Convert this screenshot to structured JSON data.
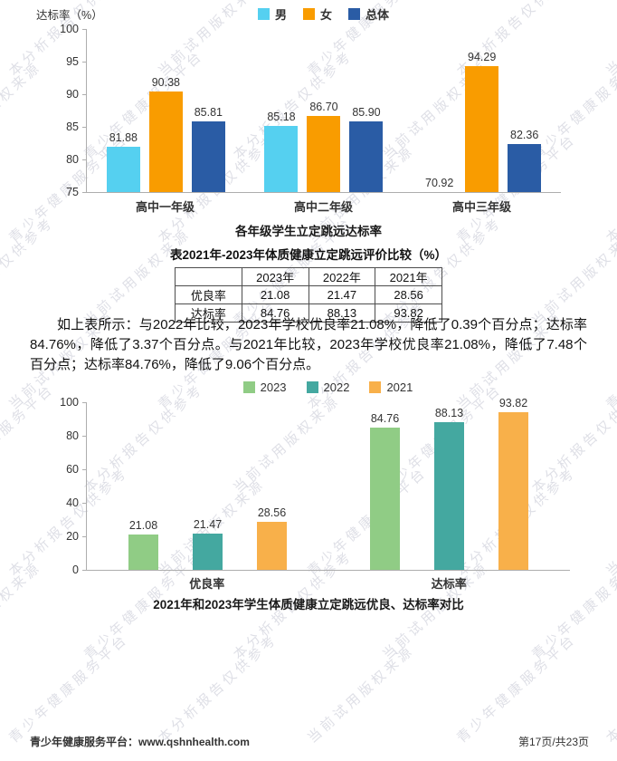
{
  "page": {
    "footer_left": "青少年健康服务平台：www.qshnhealth.com",
    "footer_right": "第17页/共23页"
  },
  "watermark": {
    "phrases": [
      "青少年健康服务平台",
      "本分析报告仅供参考",
      "当前试用版权来源"
    ]
  },
  "chart_data": [
    {
      "type": "bar",
      "title": "各年级学生立定跳远达标率",
      "ylabel": "达标率（%）",
      "categories": [
        "高中一年级",
        "高中二年级",
        "高中三年级"
      ],
      "series": [
        {
          "name": "男",
          "color": "#55D0F0",
          "values": [
            81.88,
            85.18,
            70.92
          ]
        },
        {
          "name": "女",
          "color": "#F99C00",
          "values": [
            90.38,
            86.7,
            94.29
          ]
        },
        {
          "name": "总体",
          "color": "#2A5CA5",
          "values": [
            85.81,
            85.9,
            82.36
          ]
        }
      ],
      "ylim": [
        75,
        100
      ],
      "yticks": [
        75,
        80,
        85,
        90,
        95,
        100
      ],
      "legend_position": "top",
      "grid": false
    },
    {
      "type": "bar",
      "title": "2021年和2023年学生体质健康立定跳远优良、达标率对比",
      "ylabel": "",
      "categories": [
        "优良率",
        "达标率"
      ],
      "series": [
        {
          "name": "2023",
          "color": "#90CC85",
          "values": [
            21.08,
            84.76
          ]
        },
        {
          "name": "2022",
          "color": "#44A8A0",
          "values": [
            21.47,
            88.13
          ]
        },
        {
          "name": "2021",
          "color": "#F8B04A",
          "values": [
            28.56,
            93.82
          ]
        }
      ],
      "ylim": [
        0,
        100
      ],
      "yticks": [
        0,
        20,
        40,
        60,
        80,
        100
      ],
      "legend_position": "top",
      "grid": false
    }
  ],
  "table": {
    "title": "表2021年-2023年体质健康立定跳远评价比较（%）",
    "columns": [
      "",
      "2023年",
      "2022年",
      "2021年"
    ],
    "rows": [
      {
        "label": "优良率",
        "values": [
          "21.08",
          "21.47",
          "28.56"
        ]
      },
      {
        "label": "达标率",
        "values": [
          "84.76",
          "88.13",
          "93.82"
        ]
      }
    ]
  },
  "analysis": {
    "text": "如上表所示：与2022年比较，2023年学校优良率21.08%，降低了0.39个百分点；达标率84.76%，降低了3.37个百分点。与2021年比较，2023年学校优良率21.08%，降低了7.48个百分点；达标率84.76%，降低了9.06个百分点。"
  }
}
